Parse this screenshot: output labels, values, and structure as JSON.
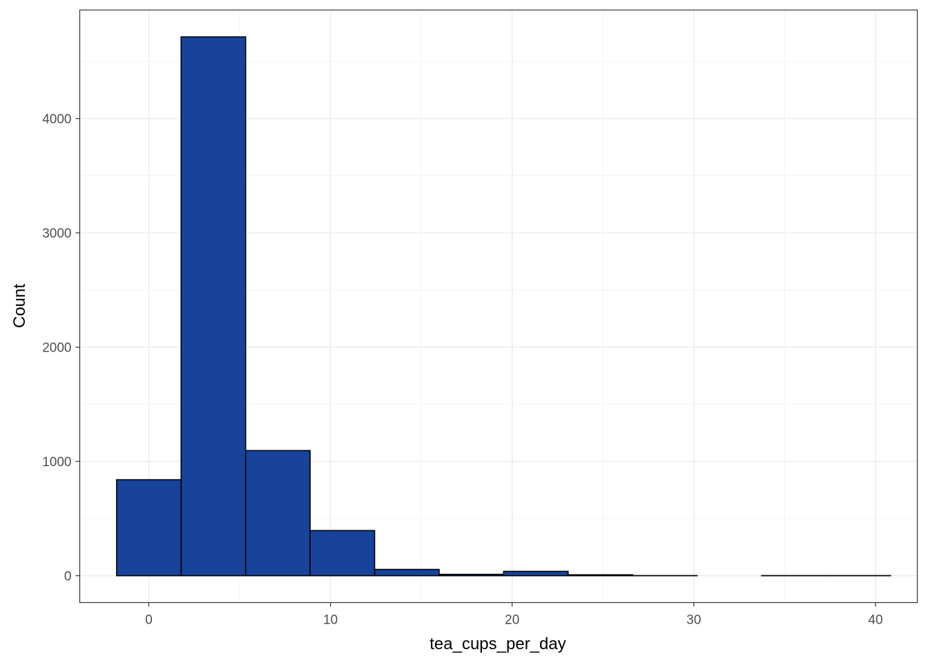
{
  "chart_data": {
    "type": "bar",
    "subtype": "histogram",
    "title": "",
    "xlabel": "tea_cups_per_day",
    "ylabel": "Count",
    "xlim": [
      -3.8,
      42.3
    ],
    "ylim": [
      -235,
      4950
    ],
    "x_ticks": [
      0,
      10,
      20,
      30,
      40
    ],
    "y_ticks": [
      0,
      1000,
      2000,
      3000,
      4000
    ],
    "grid": true,
    "legend": "none",
    "bin_width": 3.55,
    "bins": [
      {
        "x0": -1.77,
        "x1": 1.78,
        "count": 840
      },
      {
        "x0": 1.78,
        "x1": 5.33,
        "count": 4715
      },
      {
        "x0": 5.33,
        "x1": 8.88,
        "count": 1095
      },
      {
        "x0": 8.88,
        "x1": 12.43,
        "count": 395
      },
      {
        "x0": 12.43,
        "x1": 15.98,
        "count": 55
      },
      {
        "x0": 15.98,
        "x1": 19.53,
        "count": 12
      },
      {
        "x0": 19.53,
        "x1": 23.08,
        "count": 38
      },
      {
        "x0": 23.08,
        "x1": 26.63,
        "count": 8
      },
      {
        "x0": 26.63,
        "x1": 30.18,
        "count": 1
      },
      {
        "x0": 30.18,
        "x1": 33.73,
        "count": 0
      },
      {
        "x0": 33.73,
        "x1": 37.28,
        "count": 1
      },
      {
        "x0": 37.28,
        "x1": 40.83,
        "count": 1
      }
    ],
    "colors": {
      "bar_fill": "#17439A",
      "bar_stroke": "#000000",
      "grid_major": "#EBEBEB",
      "grid_minor": "#F3F3F3",
      "panel_border": "#333333",
      "tick_text": "#4D4D4D",
      "axis_title": "#000000"
    }
  }
}
